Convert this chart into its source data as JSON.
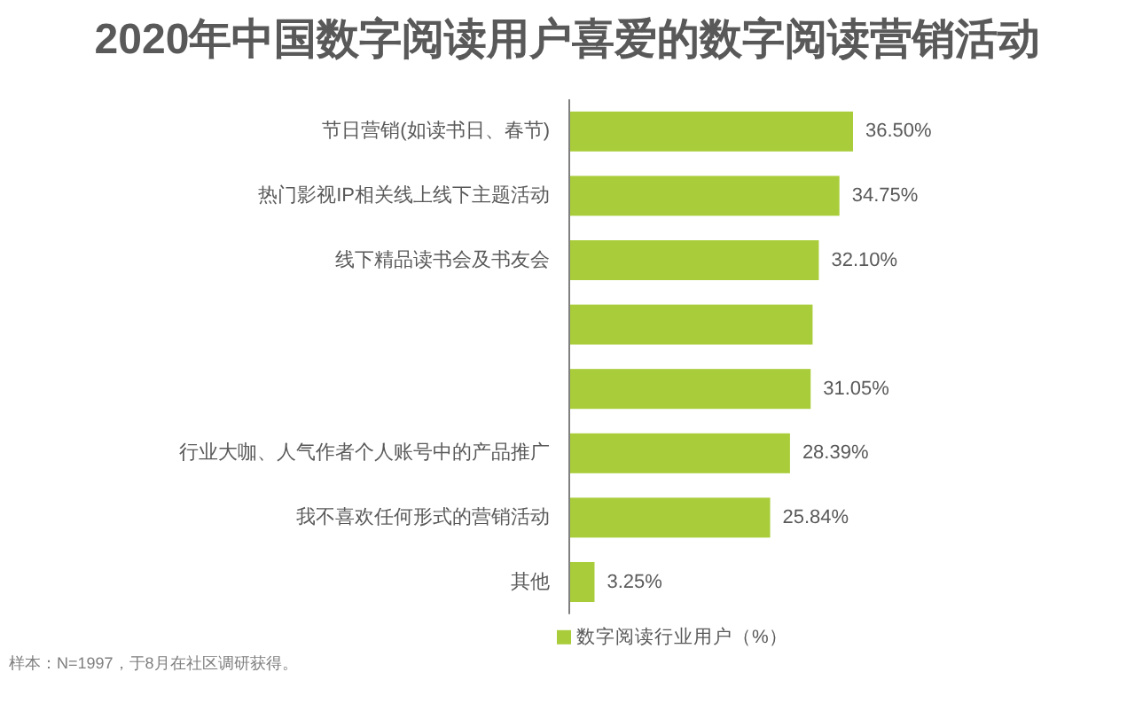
{
  "chart_data": {
    "type": "bar",
    "orientation": "horizontal",
    "title": "2020年中国数字阅读用户喜爱的数字阅读营销活动",
    "categories": [
      "节日营销(如读书日、春节)",
      "热门影视IP相关线上线下主题活动",
      "线下精品读书会及书友会",
      null,
      null,
      "行业大咖、人气作者个人账号中的产品推广",
      "我不喜欢任何形式的营销活动",
      "其他"
    ],
    "series": [
      {
        "name": "数字阅读行业用户（%）",
        "color": "#a9cd3a",
        "values": [
          36.5,
          34.75,
          32.1,
          31.3,
          31.05,
          28.39,
          25.84,
          3.25
        ],
        "value_labels": [
          "36.50%",
          "34.75%",
          "32.10%",
          null,
          "31.05%",
          "28.39%",
          "25.84%",
          "3.25%"
        ]
      }
    ],
    "legend": "bottom",
    "annotations": [
      "样本：N=1997，于8月在社区调研获得。"
    ]
  }
}
